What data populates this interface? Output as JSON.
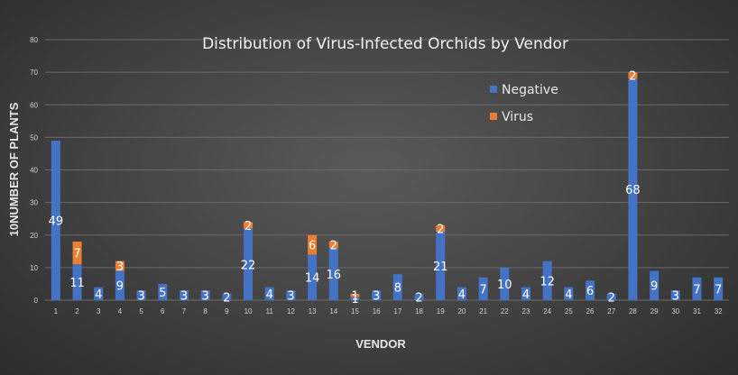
{
  "chart_data": {
    "type": "bar",
    "stacked": true,
    "title": "Distribution of Virus-Infected Orchids by Vendor",
    "xlabel": "VENDOR",
    "ylabel": "10NUMBER OF PLANTS",
    "ylim": [
      0,
      80
    ],
    "ytick_step": 10,
    "grid": true,
    "legend_position": "top-right",
    "categories": [
      "1",
      "2",
      "3",
      "4",
      "5",
      "6",
      "7",
      "8",
      "9",
      "10",
      "11",
      "12",
      "13",
      "14",
      "15",
      "16",
      "17",
      "18",
      "19",
      "20",
      "21",
      "22",
      "23",
      "24",
      "25",
      "26",
      "27",
      "28",
      "29",
      "30",
      "31",
      "32"
    ],
    "series": [
      {
        "name": "Negative",
        "color": "#4472c4",
        "values": [
          49,
          11,
          4,
          9,
          3,
          5,
          3,
          3,
          2,
          22,
          4,
          3,
          14,
          16,
          1,
          3,
          8,
          2,
          21,
          4,
          7,
          10,
          4,
          12,
          4,
          6,
          2,
          68,
          9,
          3,
          7,
          7
        ],
        "labels": [
          "49",
          "11",
          "4",
          "9",
          "3",
          "5",
          "3",
          "3",
          "2",
          "22",
          "4",
          "3",
          "14",
          "16",
          "1",
          "3",
          "8",
          "2",
          "21",
          "4",
          "7",
          "10",
          "4",
          "12",
          "4",
          "6",
          "2",
          "68",
          "9",
          "3",
          "7",
          "7"
        ]
      },
      {
        "name": "Virus",
        "color": "#ed7d31",
        "values": [
          0,
          7,
          0,
          3,
          0,
          0,
          0,
          0,
          0,
          2,
          0,
          0,
          6,
          2,
          1,
          0,
          0,
          0,
          2,
          0,
          0,
          0,
          0,
          0,
          0,
          0,
          0,
          2,
          0,
          0,
          0,
          0
        ],
        "labels": [
          "",
          "7",
          "",
          "3",
          "",
          "",
          "",
          "",
          "",
          "2",
          "",
          "",
          "6",
          "2",
          "1",
          "",
          "",
          "",
          "2",
          "",
          "",
          "",
          "",
          "",
          "",
          "",
          "",
          "2",
          "",
          "",
          "",
          ""
        ]
      }
    ]
  }
}
